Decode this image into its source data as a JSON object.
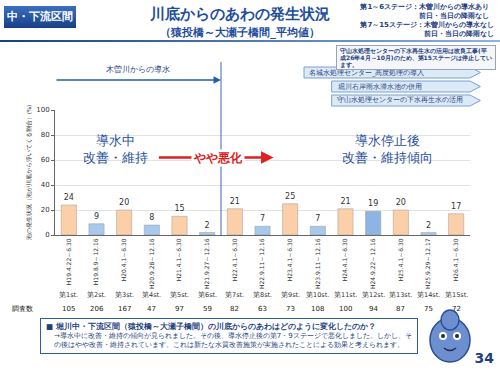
{
  "header": {
    "section": "中・下流区間",
    "conditions": [
      {
        "stages": "第1～6ステージ：",
        "lines": [
          "木曽川からの導水あり",
          "前日・当日の降雨なし"
        ]
      },
      {
        "stages": "第7～15ステージ：",
        "lines": [
          "木曽川からの導水なし",
          "前日・当日の降雨なし"
        ]
      }
    ],
    "note": "守山水処理センターの下水再生水の活用は改良工事(平成26年4月～10月)のため、第15ステージは停止しています。"
  },
  "chart_data": {
    "type": "bar",
    "title": "川底からのあわの発生状況",
    "subtitle": "（猿投橋～大瀬子橋間_平均値）",
    "y_label": "泡の発生状況（泡が川底から浮いてくる割合）(%)",
    "categories": [
      "H19.4.22～6.30",
      "H19.8.9～12.16",
      "H20.4.1～6.30",
      "H20.9.28～12.16",
      "H21.4.1～6.30",
      "H21.9.27～12.16",
      "H22.4.1～6.30",
      "H22.9.11～12.16",
      "H23.4.1～6.30",
      "H23.9.11～12.16",
      "H24.4.1～6.30",
      "H24.9.22～12.16",
      "H25.4.1～6.30",
      "H25.9.29～12.17",
      "H26.4.1～6.30"
    ],
    "values": [
      24,
      9,
      20,
      8,
      15,
      2,
      21,
      7,
      25,
      7,
      21,
      19,
      20,
      2,
      17
    ],
    "colors": [
      "#fbcfa8",
      "#a8c8ec",
      "#fbcfa8",
      "#a8c8ec",
      "#fbcfa8",
      "#a8c8ec",
      "#fbcfa8",
      "#a8c8ec",
      "#fbcfa8",
      "#a8c8ec",
      "#fbcfa8",
      "#8eb4e3",
      "#fbcfa8",
      "#a8c8ec",
      "#fbcfa8"
    ],
    "stage_labels": [
      "第1st.",
      "第2st.",
      "第3st.",
      "第4st.",
      "第5st.",
      "第6st.",
      "第7st.",
      "第8st.",
      "第9st.",
      "第10st.",
      "第11st.",
      "第12st.",
      "第13st.",
      "第14st.",
      "第15st."
    ],
    "survey_label": "調査数",
    "survey_counts": [
      105,
      206,
      167,
      47,
      97,
      59,
      82,
      63,
      73,
      108,
      100,
      94,
      87,
      75,
      72
    ],
    "ylim": [
      0,
      100
    ],
    "yticks": [
      0,
      20,
      40,
      60,
      80,
      100
    ],
    "grid": true,
    "data_labels": true,
    "inflow_arrow": "木曽川からの導水",
    "measures": [
      "名城水処理センター_高度処理の導入",
      "堀川右岸雨水滞水池の併用",
      "守山水処理センターの下水再生水の活用"
    ],
    "phase_notes": [
      [
        "導水中",
        "改善・維持"
      ],
      [
        "やや悪化"
      ],
      [
        "導水停止後",
        "改善・維持傾向"
      ]
    ]
  },
  "footer": {
    "question": "■ 堀川中・下流区間（猿投橋～大瀬子橋間）の川底からのあわはどのように変化したのか？",
    "answer": "→導水中に改善・維持の傾向が見られました。その後、導水停止後の第7・9ステージで悪化しました。しかし、その後はやや改善・維持されています。これは新たな水質改善施策が実施されたことによる効果と考えられます。",
    "page": "34"
  }
}
